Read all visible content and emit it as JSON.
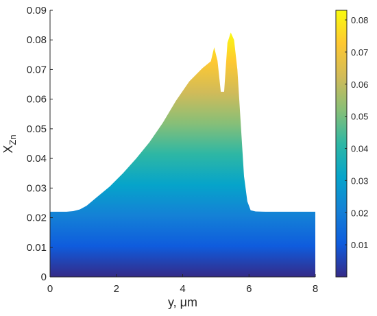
{
  "chart_data": {
    "type": "area",
    "xlabel": "y, μm",
    "ylabel": "X",
    "ylabel_subscript": "Zn",
    "xlim": [
      0,
      8
    ],
    "ylim": [
      0,
      0.09
    ],
    "xticks": [
      0,
      2,
      4,
      6,
      8
    ],
    "yticks": [
      0,
      0.01,
      0.02,
      0.03,
      0.04,
      0.05,
      0.06,
      0.07,
      0.08,
      0.09
    ],
    "xtick_labels": [
      "0",
      "2",
      "4",
      "6",
      "8"
    ],
    "ytick_labels": [
      "0",
      "0.01",
      "0.02",
      "0.03",
      "0.04",
      "0.05",
      "0.06",
      "0.07",
      "0.08",
      "0.09"
    ],
    "colormap": "parula",
    "colormap_stops": [
      "#352a87",
      "#0f5cdd",
      "#1481d6",
      "#06a4ca",
      "#2eb7a4",
      "#87bf77",
      "#d1bb59",
      "#fec832",
      "#f9fb0e"
    ],
    "colorbar": {
      "lim": [
        0,
        0.083
      ],
      "ticks": [
        0.01,
        0.02,
        0.03,
        0.04,
        0.05,
        0.06,
        0.07,
        0.08
      ],
      "tick_labels": [
        "0.01",
        "0.02",
        "0.03",
        "0.04",
        "0.05",
        "0.06",
        "0.07",
        "0.08"
      ],
      "placement": "right"
    },
    "grid": false,
    "profile": {
      "x": [
        0,
        0.5,
        0.7,
        0.9,
        1.1,
        1.4,
        1.8,
        2.2,
        2.6,
        3.0,
        3.4,
        3.8,
        4.2,
        4.6,
        4.85,
        4.95,
        5.05,
        5.15,
        5.25,
        5.35,
        5.45,
        5.55,
        5.65,
        5.75,
        5.85,
        5.95,
        6.05,
        6.2,
        6.5,
        8.0
      ],
      "y": [
        0.022,
        0.022,
        0.0222,
        0.0228,
        0.024,
        0.0268,
        0.0305,
        0.035,
        0.04,
        0.0455,
        0.052,
        0.0595,
        0.066,
        0.0705,
        0.0728,
        0.0775,
        0.073,
        0.0625,
        0.0625,
        0.079,
        0.0825,
        0.08,
        0.07,
        0.052,
        0.034,
        0.0255,
        0.0225,
        0.0221,
        0.022,
        0.022
      ]
    }
  }
}
